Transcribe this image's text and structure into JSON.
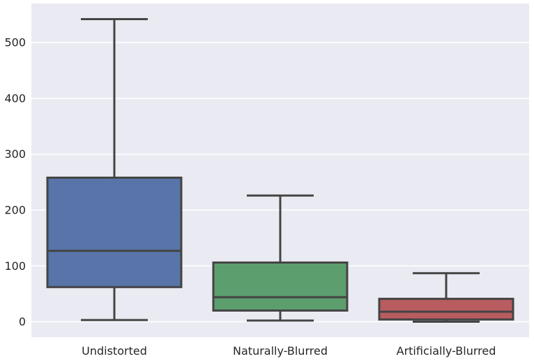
{
  "chart_data": {
    "type": "box",
    "title": "",
    "xlabel": "",
    "ylabel": "",
    "categories": [
      "Undistorted",
      "Naturally-Blurred",
      "Artificially-Blurred"
    ],
    "boxes": [
      {
        "category": "Undistorted",
        "whisker_low": 3,
        "q1": 62,
        "median": 127,
        "q3": 258,
        "whisker_high": 542,
        "color": "#5874a8"
      },
      {
        "category": "Naturally-Blurred",
        "whisker_low": 2,
        "q1": 20,
        "median": 44,
        "q3": 106,
        "whisker_high": 226,
        "color": "#5d9e6e"
      },
      {
        "category": "Artificially-Blurred",
        "whisker_low": 0,
        "q1": 4,
        "median": 18,
        "q3": 41,
        "whisker_high": 87,
        "color": "#b85c60"
      }
    ],
    "ylim": [
      -28,
      570
    ],
    "yticks": [
      0,
      100,
      200,
      300,
      400,
      500
    ],
    "grid": true,
    "style": {
      "background": "#eaeaf2",
      "grid_color": "#ffffff",
      "line_color": "#444444"
    }
  }
}
